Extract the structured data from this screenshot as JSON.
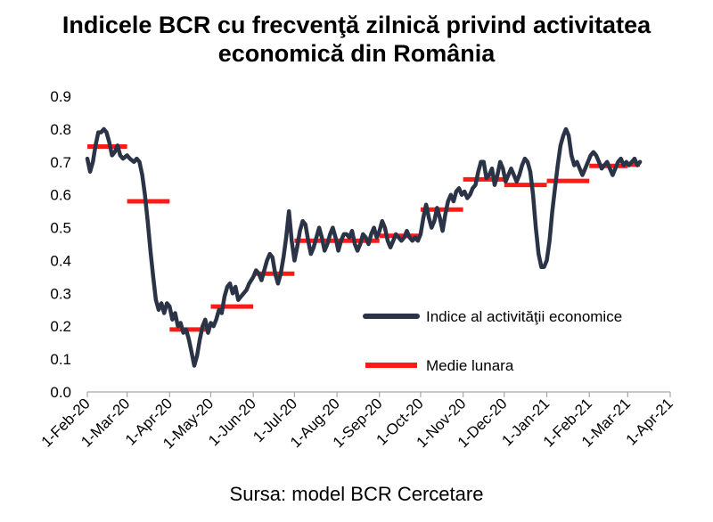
{
  "title_lines": [
    "Indicele BCR cu frecvenţă zilnică privind activitatea",
    "economică din România"
  ],
  "source": "Sursa: model BCR Cercetare",
  "chart_data": {
    "type": "line",
    "title": "Indicele BCR cu frecvenţă zilnică privind activitatea economică din România",
    "xlabel": "",
    "ylabel": "",
    "ylim": [
      0,
      0.9
    ],
    "yticks": [
      "0.0",
      "0.1",
      "0.2",
      "0.3",
      "0.4",
      "0.5",
      "0.6",
      "0.7",
      "0.8",
      "0.9"
    ],
    "xticks": [
      "1-Feb-20",
      "1-Mar-20",
      "1-Apr-20",
      "1-May-20",
      "1-Jun-20",
      "1-Jul-20",
      "1-Aug-20",
      "1-Sep-20",
      "1-Oct-20",
      "1-Nov-20",
      "1-Dec-20",
      "1-Jan-21",
      "1-Feb-21",
      "1-Mar-21",
      "1-Apr-21"
    ],
    "xlim": [
      "2020-02-01",
      "2021-04-01"
    ],
    "grid": false,
    "legend_position": "right-middle",
    "series": [
      {
        "name": "Indice al activităţii economice",
        "kind": "line",
        "color": "#2b3446",
        "points": [
          [
            "2020-02-01",
            0.71
          ],
          [
            "2020-02-03",
            0.67
          ],
          [
            "2020-02-05",
            0.7
          ],
          [
            "2020-02-07",
            0.75
          ],
          [
            "2020-02-09",
            0.79
          ],
          [
            "2020-02-11",
            0.79
          ],
          [
            "2020-02-13",
            0.8
          ],
          [
            "2020-02-15",
            0.79
          ],
          [
            "2020-02-17",
            0.76
          ],
          [
            "2020-02-19",
            0.72
          ],
          [
            "2020-02-21",
            0.73
          ],
          [
            "2020-02-23",
            0.75
          ],
          [
            "2020-02-25",
            0.72
          ],
          [
            "2020-02-27",
            0.71
          ],
          [
            "2020-03-01",
            0.72
          ],
          [
            "2020-03-03",
            0.71
          ],
          [
            "2020-03-06",
            0.7
          ],
          [
            "2020-03-08",
            0.71
          ],
          [
            "2020-03-10",
            0.7
          ],
          [
            "2020-03-12",
            0.66
          ],
          [
            "2020-03-14",
            0.6
          ],
          [
            "2020-03-16",
            0.52
          ],
          [
            "2020-03-18",
            0.43
          ],
          [
            "2020-03-20",
            0.35
          ],
          [
            "2020-03-22",
            0.28
          ],
          [
            "2020-03-24",
            0.25
          ],
          [
            "2020-03-26",
            0.27
          ],
          [
            "2020-03-28",
            0.24
          ],
          [
            "2020-03-30",
            0.27
          ],
          [
            "2020-04-01",
            0.26
          ],
          [
            "2020-04-03",
            0.22
          ],
          [
            "2020-04-05",
            0.24
          ],
          [
            "2020-04-07",
            0.2
          ],
          [
            "2020-04-09",
            0.21
          ],
          [
            "2020-04-11",
            0.18
          ],
          [
            "2020-04-13",
            0.19
          ],
          [
            "2020-04-15",
            0.16
          ],
          [
            "2020-04-17",
            0.12
          ],
          [
            "2020-04-19",
            0.08
          ],
          [
            "2020-04-21",
            0.11
          ],
          [
            "2020-04-23",
            0.16
          ],
          [
            "2020-04-25",
            0.2
          ],
          [
            "2020-04-27",
            0.22
          ],
          [
            "2020-04-29",
            0.18
          ],
          [
            "2020-05-01",
            0.21
          ],
          [
            "2020-05-03",
            0.2
          ],
          [
            "2020-05-05",
            0.22
          ],
          [
            "2020-05-07",
            0.25
          ],
          [
            "2020-05-09",
            0.24
          ],
          [
            "2020-05-11",
            0.29
          ],
          [
            "2020-05-13",
            0.32
          ],
          [
            "2020-05-15",
            0.33
          ],
          [
            "2020-05-17",
            0.3
          ],
          [
            "2020-05-19",
            0.32
          ],
          [
            "2020-05-21",
            0.28
          ],
          [
            "2020-05-23",
            0.29
          ],
          [
            "2020-05-25",
            0.3
          ],
          [
            "2020-05-27",
            0.31
          ],
          [
            "2020-05-29",
            0.33
          ],
          [
            "2020-06-01",
            0.35
          ],
          [
            "2020-06-03",
            0.37
          ],
          [
            "2020-06-05",
            0.36
          ],
          [
            "2020-06-07",
            0.34
          ],
          [
            "2020-06-09",
            0.37
          ],
          [
            "2020-06-11",
            0.4
          ],
          [
            "2020-06-13",
            0.42
          ],
          [
            "2020-06-15",
            0.41
          ],
          [
            "2020-06-17",
            0.36
          ],
          [
            "2020-06-19",
            0.33
          ],
          [
            "2020-06-21",
            0.36
          ],
          [
            "2020-06-23",
            0.41
          ],
          [
            "2020-06-25",
            0.47
          ],
          [
            "2020-06-27",
            0.55
          ],
          [
            "2020-06-29",
            0.46
          ],
          [
            "2020-07-01",
            0.4
          ],
          [
            "2020-07-03",
            0.44
          ],
          [
            "2020-07-05",
            0.49
          ],
          [
            "2020-07-07",
            0.52
          ],
          [
            "2020-07-09",
            0.51
          ],
          [
            "2020-07-11",
            0.46
          ],
          [
            "2020-07-13",
            0.42
          ],
          [
            "2020-07-15",
            0.44
          ],
          [
            "2020-07-17",
            0.47
          ],
          [
            "2020-07-19",
            0.5
          ],
          [
            "2020-07-21",
            0.47
          ],
          [
            "2020-07-23",
            0.43
          ],
          [
            "2020-07-25",
            0.45
          ],
          [
            "2020-07-27",
            0.48
          ],
          [
            "2020-07-29",
            0.5
          ],
          [
            "2020-07-31",
            0.47
          ],
          [
            "2020-08-02",
            0.43
          ],
          [
            "2020-08-04",
            0.46
          ],
          [
            "2020-08-06",
            0.48
          ],
          [
            "2020-08-08",
            0.48
          ],
          [
            "2020-08-10",
            0.47
          ],
          [
            "2020-08-12",
            0.49
          ],
          [
            "2020-08-14",
            0.45
          ],
          [
            "2020-08-16",
            0.43
          ],
          [
            "2020-08-18",
            0.45
          ],
          [
            "2020-08-20",
            0.48
          ],
          [
            "2020-08-22",
            0.47
          ],
          [
            "2020-08-24",
            0.45
          ],
          [
            "2020-08-26",
            0.48
          ],
          [
            "2020-08-28",
            0.5
          ],
          [
            "2020-08-30",
            0.47
          ],
          [
            "2020-09-01",
            0.49
          ],
          [
            "2020-09-03",
            0.52
          ],
          [
            "2020-09-05",
            0.5
          ],
          [
            "2020-09-07",
            0.46
          ],
          [
            "2020-09-09",
            0.44
          ],
          [
            "2020-09-11",
            0.46
          ],
          [
            "2020-09-13",
            0.48
          ],
          [
            "2020-09-15",
            0.47
          ],
          [
            "2020-09-17",
            0.46
          ],
          [
            "2020-09-19",
            0.47
          ],
          [
            "2020-09-21",
            0.49
          ],
          [
            "2020-09-23",
            0.47
          ],
          [
            "2020-09-25",
            0.46
          ],
          [
            "2020-09-27",
            0.47
          ],
          [
            "2020-09-29",
            0.46
          ],
          [
            "2020-10-01",
            0.48
          ],
          [
            "2020-10-03",
            0.53
          ],
          [
            "2020-10-05",
            0.57
          ],
          [
            "2020-10-07",
            0.53
          ],
          [
            "2020-10-09",
            0.5
          ],
          [
            "2020-10-11",
            0.52
          ],
          [
            "2020-10-13",
            0.56
          ],
          [
            "2020-10-15",
            0.53
          ],
          [
            "2020-10-17",
            0.49
          ],
          [
            "2020-10-19",
            0.54
          ],
          [
            "2020-10-21",
            0.58
          ],
          [
            "2020-10-23",
            0.6
          ],
          [
            "2020-10-25",
            0.58
          ],
          [
            "2020-10-27",
            0.61
          ],
          [
            "2020-10-29",
            0.62
          ],
          [
            "2020-10-31",
            0.6
          ],
          [
            "2020-11-02",
            0.61
          ],
          [
            "2020-11-04",
            0.59
          ],
          [
            "2020-11-06",
            0.6
          ],
          [
            "2020-11-08",
            0.62
          ],
          [
            "2020-11-10",
            0.63
          ],
          [
            "2020-11-12",
            0.67
          ],
          [
            "2020-11-14",
            0.7
          ],
          [
            "2020-11-16",
            0.7
          ],
          [
            "2020-11-18",
            0.65
          ],
          [
            "2020-11-20",
            0.66
          ],
          [
            "2020-11-22",
            0.68
          ],
          [
            "2020-11-24",
            0.63
          ],
          [
            "2020-11-26",
            0.66
          ],
          [
            "2020-11-28",
            0.7
          ],
          [
            "2020-11-30",
            0.68
          ],
          [
            "2020-12-02",
            0.64
          ],
          [
            "2020-12-04",
            0.66
          ],
          [
            "2020-12-06",
            0.68
          ],
          [
            "2020-12-08",
            0.66
          ],
          [
            "2020-12-10",
            0.64
          ],
          [
            "2020-12-12",
            0.66
          ],
          [
            "2020-12-14",
            0.69
          ],
          [
            "2020-12-16",
            0.71
          ],
          [
            "2020-12-18",
            0.7
          ],
          [
            "2020-12-20",
            0.67
          ],
          [
            "2020-12-22",
            0.6
          ],
          [
            "2020-12-24",
            0.5
          ],
          [
            "2020-12-26",
            0.42
          ],
          [
            "2020-12-28",
            0.38
          ],
          [
            "2020-12-30",
            0.38
          ],
          [
            "2021-01-01",
            0.4
          ],
          [
            "2021-01-03",
            0.46
          ],
          [
            "2021-01-05",
            0.55
          ],
          [
            "2021-01-07",
            0.62
          ],
          [
            "2021-01-09",
            0.69
          ],
          [
            "2021-01-11",
            0.75
          ],
          [
            "2021-01-13",
            0.78
          ],
          [
            "2021-01-15",
            0.8
          ],
          [
            "2021-01-17",
            0.78
          ],
          [
            "2021-01-19",
            0.72
          ],
          [
            "2021-01-21",
            0.69
          ],
          [
            "2021-01-23",
            0.7
          ],
          [
            "2021-01-25",
            0.68
          ],
          [
            "2021-01-27",
            0.66
          ],
          [
            "2021-01-29",
            0.68
          ],
          [
            "2021-01-31",
            0.7
          ],
          [
            "2021-02-02",
            0.72
          ],
          [
            "2021-02-04",
            0.73
          ],
          [
            "2021-02-06",
            0.72
          ],
          [
            "2021-02-08",
            0.7
          ],
          [
            "2021-02-10",
            0.68
          ],
          [
            "2021-02-12",
            0.69
          ],
          [
            "2021-02-14",
            0.7
          ],
          [
            "2021-02-16",
            0.68
          ],
          [
            "2021-02-18",
            0.66
          ],
          [
            "2021-02-20",
            0.68
          ],
          [
            "2021-02-22",
            0.7
          ],
          [
            "2021-02-24",
            0.71
          ],
          [
            "2021-02-26",
            0.69
          ],
          [
            "2021-02-28",
            0.7
          ],
          [
            "2021-03-02",
            0.69
          ],
          [
            "2021-03-04",
            0.7
          ],
          [
            "2021-03-06",
            0.71
          ],
          [
            "2021-03-08",
            0.69
          ],
          [
            "2021-03-10",
            0.7
          ]
        ]
      },
      {
        "name": "Medie lunara",
        "kind": "monthly-average-segments",
        "color": "#ff1a1a",
        "segments": [
          {
            "from": "2020-02-01",
            "to": "2020-03-01",
            "value": 0.747
          },
          {
            "from": "2020-03-01",
            "to": "2020-04-01",
            "value": 0.58
          },
          {
            "from": "2020-04-01",
            "to": "2020-05-01",
            "value": 0.19
          },
          {
            "from": "2020-05-01",
            "to": "2020-06-01",
            "value": 0.26
          },
          {
            "from": "2020-06-01",
            "to": "2020-07-01",
            "value": 0.36
          },
          {
            "from": "2020-07-01",
            "to": "2020-08-01",
            "value": 0.46
          },
          {
            "from": "2020-08-01",
            "to": "2020-09-01",
            "value": 0.46
          },
          {
            "from": "2020-09-01",
            "to": "2020-10-01",
            "value": 0.475
          },
          {
            "from": "2020-10-01",
            "to": "2020-11-01",
            "value": 0.555
          },
          {
            "from": "2020-11-01",
            "to": "2020-12-01",
            "value": 0.647
          },
          {
            "from": "2020-12-01",
            "to": "2021-01-01",
            "value": 0.63
          },
          {
            "from": "2021-01-01",
            "to": "2021-02-01",
            "value": 0.642
          },
          {
            "from": "2021-02-01",
            "to": "2021-03-01",
            "value": 0.688
          },
          {
            "from": "2021-03-01",
            "to": "2021-03-10",
            "value": 0.692
          }
        ]
      }
    ]
  }
}
